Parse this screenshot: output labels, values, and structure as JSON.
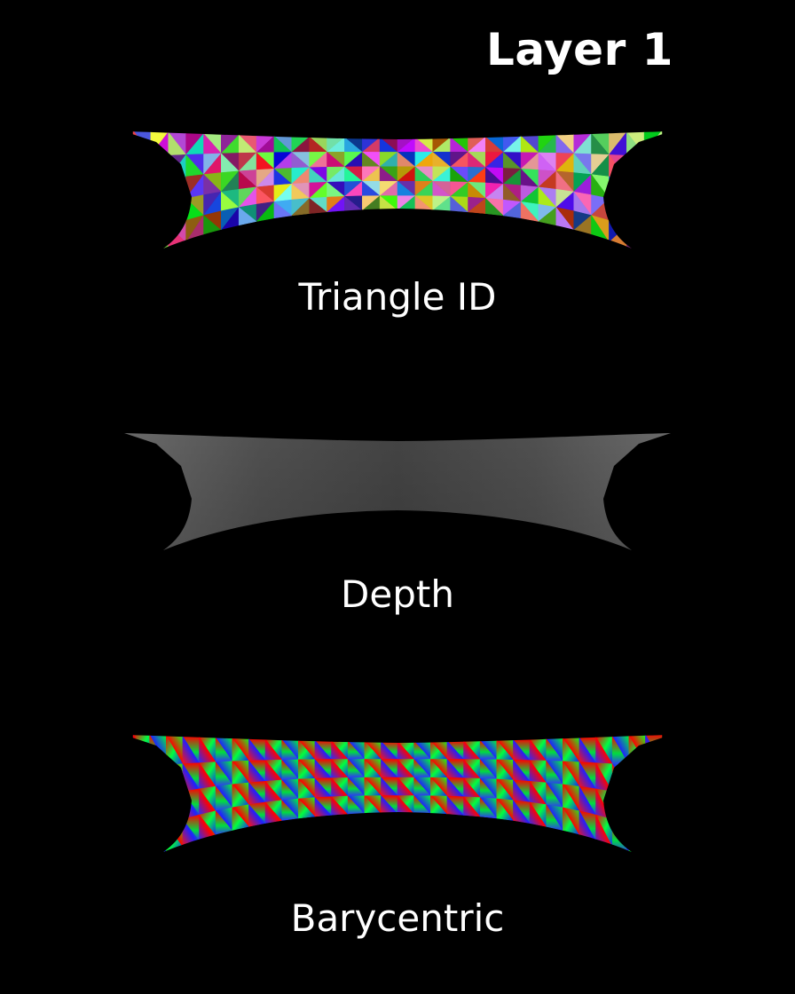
{
  "title": "Layer 1",
  "panels": [
    {
      "id": "triangle-id",
      "label": "Triangle ID",
      "render": "triangle-id"
    },
    {
      "id": "depth",
      "label": "Depth",
      "render": "depth"
    },
    {
      "id": "barycentric",
      "label": "Barycentric",
      "render": "barycentric"
    }
  ]
}
